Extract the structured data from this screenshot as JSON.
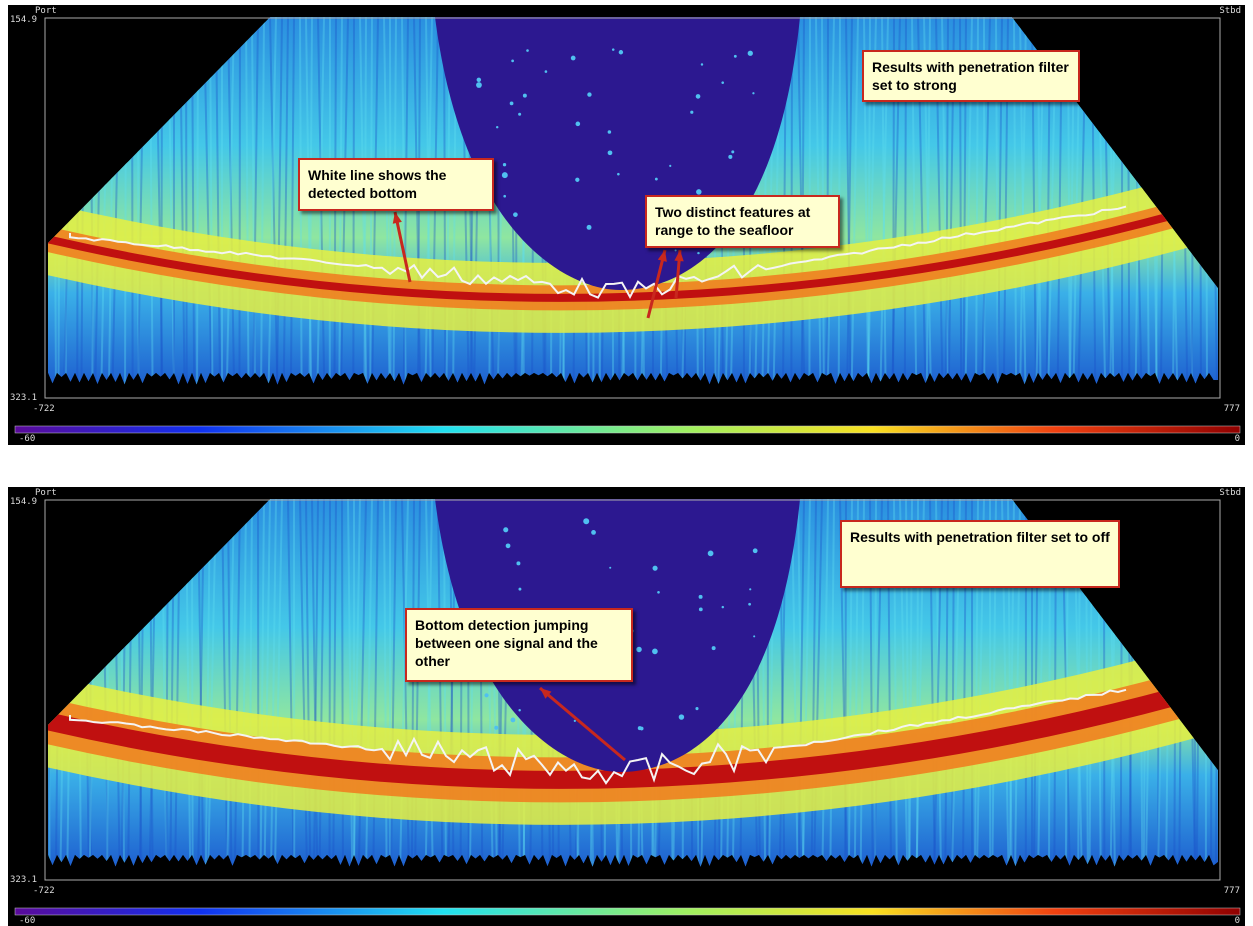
{
  "panels": [
    {
      "port": "Port",
      "stbd": "Stbd",
      "y_top": "154.9",
      "y_bottom": "323.1",
      "x_left": "-722",
      "x_right": "777",
      "scale_min": "-60",
      "scale_max": "0",
      "callouts": [
        "Results with penetration filter set to strong",
        "White line shows the detected bottom",
        "Two distinct features at range to the seafloor"
      ]
    },
    {
      "port": "Port",
      "stbd": "Stbd",
      "y_top": "154.9",
      "y_bottom": "323.1",
      "x_left": "-722",
      "x_right": "777",
      "scale_min": "-60",
      "scale_max": "0",
      "callouts": [
        "Results with penetration filter set to off",
        "Bottom detection jumping between one signal and the other"
      ]
    }
  ]
}
